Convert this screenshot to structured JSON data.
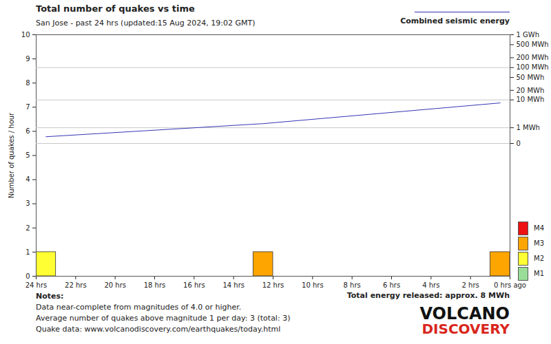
{
  "chart_data": {
    "type": "bar",
    "title": "Total number of quakes vs time",
    "subtitle": "San Jose - past 24 hrs (updated:15 Aug 2024, 19:02 GMT)",
    "ylabel": "Number of quakes / hour",
    "xlim": [
      24,
      0
    ],
    "xticks": [
      {
        "value": 24,
        "label": "24 hrs"
      },
      {
        "value": 22,
        "label": "22 hrs"
      },
      {
        "value": 20,
        "label": "20 hrs"
      },
      {
        "value": 18,
        "label": "18 hrs"
      },
      {
        "value": 16,
        "label": "16 hrs"
      },
      {
        "value": 14,
        "label": "14 hrs"
      },
      {
        "value": 12,
        "label": "12 hrs"
      },
      {
        "value": 10,
        "label": "10 hrs"
      },
      {
        "value": 8,
        "label": "8 hrs"
      },
      {
        "value": 6,
        "label": "6 hrs"
      },
      {
        "value": 4,
        "label": "4 hrs"
      },
      {
        "value": 2,
        "label": "2 hrs"
      },
      {
        "value": 0,
        "label": "0 hrs ago"
      }
    ],
    "ylim": [
      0,
      10
    ],
    "yticks": [
      0,
      1,
      2,
      3,
      4,
      5,
      6,
      7,
      8,
      9,
      10
    ],
    "y2lim": [
      0,
      1000
    ],
    "y2ticks": [
      {
        "value": 1000,
        "label": "1 GWh"
      },
      {
        "value": 500,
        "label": "500 MWh"
      },
      {
        "value": 200,
        "label": "200 MWh"
      },
      {
        "value": 100,
        "label": "100 MWh"
      },
      {
        "value": 50,
        "label": "50 MWh"
      },
      {
        "value": 20,
        "label": "20 MWh"
      },
      {
        "value": 10,
        "label": "10 MWh"
      },
      {
        "value": 1,
        "label": "1 MWh"
      },
      0
    ],
    "bins": [
      24,
      23,
      22,
      21,
      20,
      19,
      18,
      17,
      16,
      15,
      14,
      13,
      12,
      11,
      10,
      9,
      8,
      7,
      6,
      5,
      4,
      3,
      2,
      1,
      0
    ],
    "stacked": true,
    "grid": true,
    "legend": "bottom-right",
    "series": [
      {
        "name": "M4",
        "color": "#ee1111",
        "values": [
          0,
          0,
          0,
          0,
          0,
          0,
          0,
          0,
          0,
          0,
          0,
          0,
          0,
          0,
          0,
          0,
          0,
          0,
          0,
          0,
          0,
          0,
          0,
          0
        ]
      },
      {
        "name": "M3",
        "color": "#ffa500",
        "values": [
          0,
          0,
          0,
          0,
          0,
          0,
          0,
          0,
          0,
          0,
          0,
          1,
          0,
          0,
          0,
          0,
          0,
          0,
          0,
          0,
          0,
          0,
          0,
          1
        ]
      },
      {
        "name": "M2",
        "color": "#ffff33",
        "values": [
          1,
          0,
          0,
          0,
          0,
          0,
          0,
          0,
          0,
          0,
          0,
          0,
          0,
          0,
          0,
          0,
          0,
          0,
          0,
          0,
          0,
          0,
          0,
          0
        ]
      },
      {
        "name": "M1",
        "color": "#99dd99",
        "values": [
          0,
          0,
          0,
          0,
          0,
          0,
          0,
          0,
          0,
          0,
          0,
          0,
          0,
          0,
          0,
          0,
          0,
          0,
          0,
          0,
          0,
          0,
          0,
          0
        ]
      },
      {
        "name": "Combined seismic energy",
        "type": "line",
        "axis": "y2",
        "color": "#3535b5",
        "x": [
          23.5,
          12.5,
          0.5
        ],
        "values": [
          0.3,
          1.5,
          8
        ]
      }
    ],
    "annotations": [
      "Total energy released: approx. 8 MWh"
    ],
    "notes": [
      "Notes:",
      "Data near-complete from magnitudes of 4.0 or higher.",
      "Average number of quakes above magnitude 1 per day: 3 (total: 3)",
      "Quake data: www.volcanodiscovery.com/earthquakes/today.html"
    ],
    "logo": [
      "VOLCANO",
      "DISCOVERY"
    ]
  }
}
